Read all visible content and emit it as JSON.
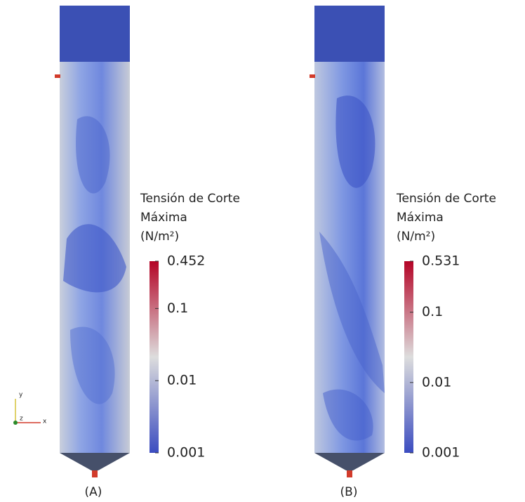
{
  "panels": [
    {
      "label": "(A)",
      "colorbar": {
        "title": [
          "Tensión de Corte",
          "Máxima",
          "(N/m²)"
        ],
        "lim": [
          0.001,
          0.452
        ],
        "ticks": [
          0.001,
          0.01,
          0.1,
          0.452
        ],
        "log": true
      },
      "triad": {
        "x": "x",
        "y": "y",
        "z": "z"
      }
    },
    {
      "label": "(B)",
      "colorbar": {
        "title": [
          "Tensión de Corte",
          "Máxima",
          "(N/m²)"
        ],
        "lim": [
          0.001,
          0.531
        ],
        "ticks": [
          0.001,
          0.01,
          0.1,
          0.531
        ],
        "log": true
      }
    }
  ]
}
